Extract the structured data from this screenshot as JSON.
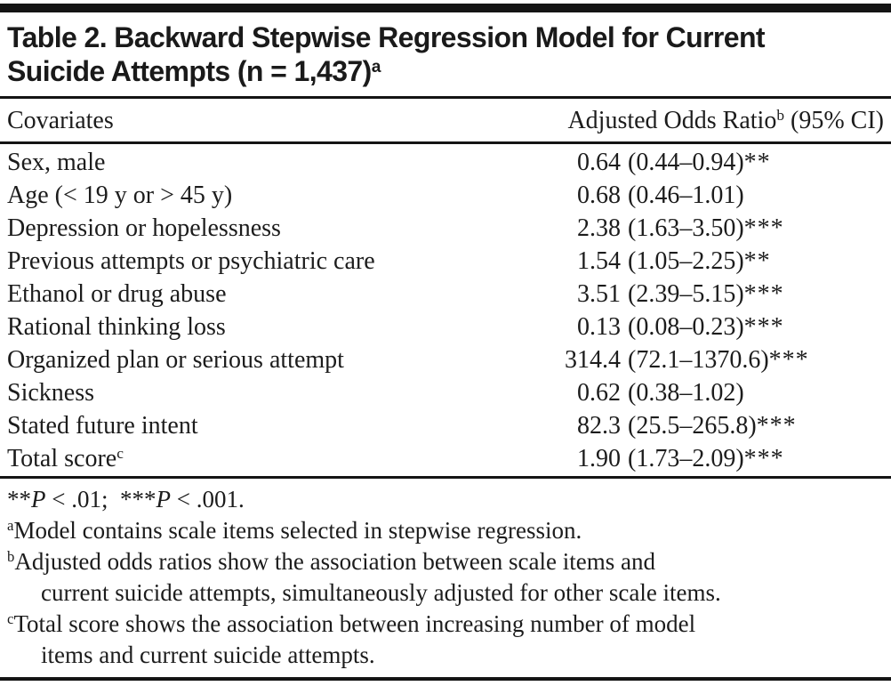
{
  "title": {
    "line1": "Table 2. Backward Stepwise Regression Model for Current",
    "line2": "Suicide Attempts (n = 1,437)",
    "sup": "a"
  },
  "header": {
    "covariates": "Covariates",
    "aor_label": "Adjusted Odds Ratio",
    "aor_sup": "b",
    "aor_rest": " (95% CI)"
  },
  "rows": [
    {
      "label": "Sex, male",
      "or": "0.64",
      "ci": "(0.44–0.94)",
      "stars": "**"
    },
    {
      "label": "Age (< 19 y or > 45 y)",
      "or": "0.68",
      "ci": "(0.46–1.01)",
      "stars": ""
    },
    {
      "label": "Depression or hopelessness",
      "or": "2.38",
      "ci": "(1.63–3.50)",
      "stars": "***"
    },
    {
      "label": "Previous attempts or psychiatric care",
      "or": "1.54",
      "ci": "(1.05–2.25)",
      "stars": "**"
    },
    {
      "label": "Ethanol or drug abuse",
      "or": "3.51",
      "ci": "(2.39–5.15)",
      "stars": "***"
    },
    {
      "label": "Rational thinking loss",
      "or": "0.13",
      "ci": "(0.08–0.23)",
      "stars": "***"
    },
    {
      "label": "Organized plan or serious attempt",
      "or": "314.4",
      "ci": "(72.1–1370.6)",
      "stars": "***"
    },
    {
      "label": "Sickness",
      "or": "0.62",
      "ci": "(0.38–1.02)",
      "stars": ""
    },
    {
      "label": "Stated future intent",
      "or": "82.3",
      "ci": "(25.5–265.8)",
      "stars": "***"
    },
    {
      "label": "Total score",
      "label_sup": "c",
      "or": "1.90",
      "ci": "(1.73–2.09)",
      "stars": "***"
    }
  ],
  "footnotes": {
    "significance": [
      {
        "text": "**"
      },
      {
        "text": "P",
        "italic": true
      },
      {
        "text": " < .01;  "
      },
      {
        "text": "***"
      },
      {
        "text": "P",
        "italic": true
      },
      {
        "text": " < .001."
      }
    ],
    "notes": [
      {
        "sup": "a",
        "lines": [
          "Model contains scale items selected in stepwise regression."
        ]
      },
      {
        "sup": "b",
        "lines": [
          "Adjusted odds ratios show the association between scale items and",
          "current suicide attempts, simultaneously adjusted for other scale items."
        ]
      },
      {
        "sup": "c",
        "lines": [
          "Total score shows the association between increasing number of model",
          "items and current suicide attempts."
        ]
      }
    ]
  },
  "colors": {
    "text": "#1c1c1c",
    "rule": "#141414",
    "background": "#ffffff"
  }
}
